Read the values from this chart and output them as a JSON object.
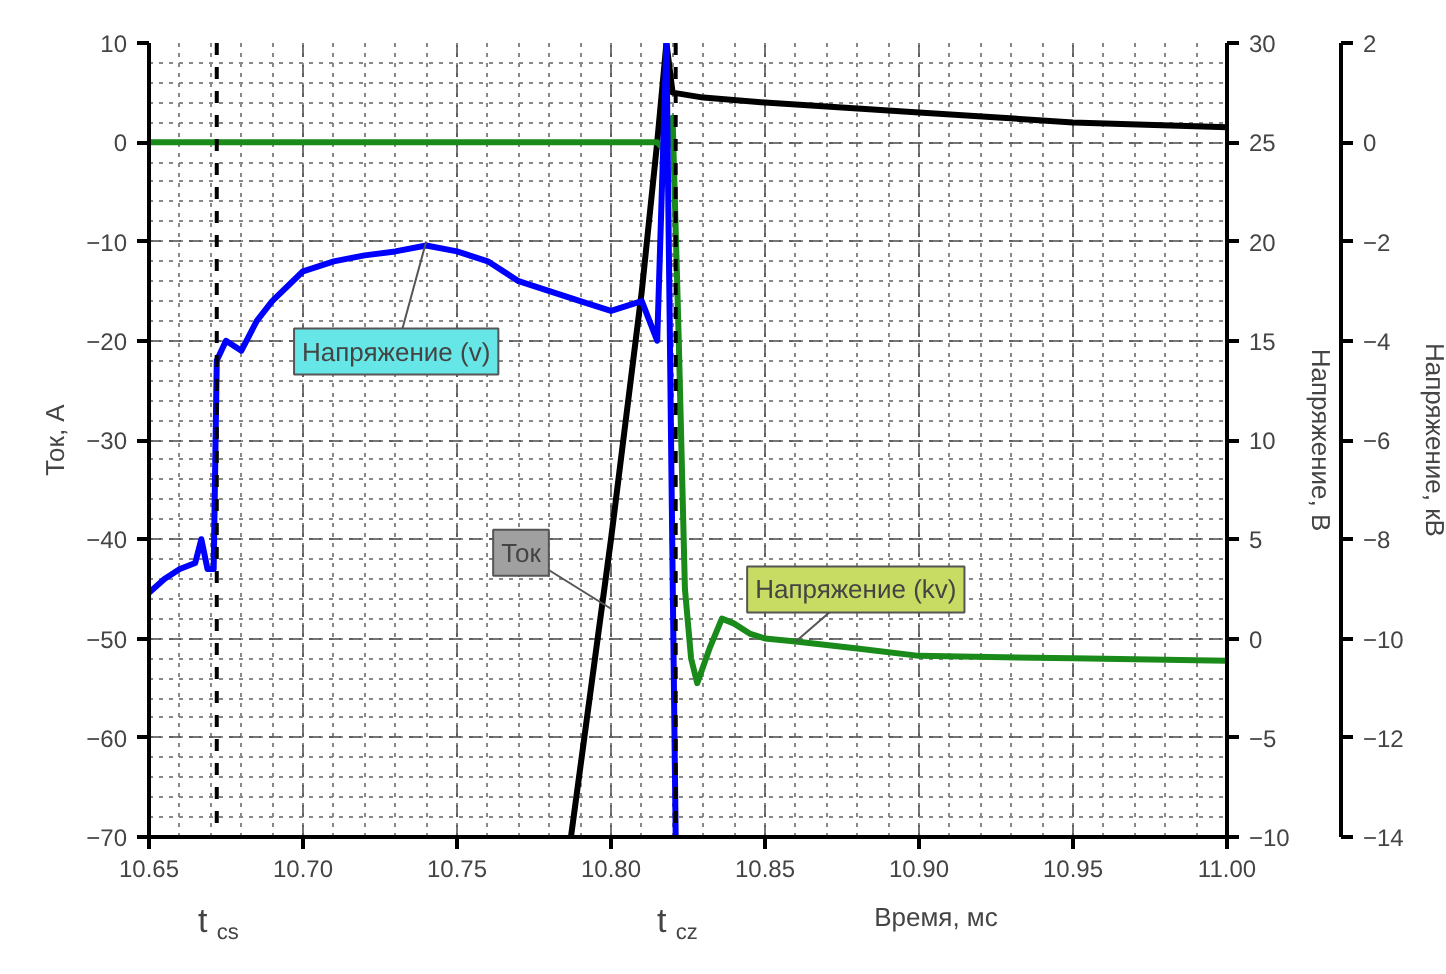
{
  "chart_data": {
    "type": "line",
    "xlabel": "Время, мс",
    "ylabel": "Ток, А",
    "y2label": "Напряжение, В",
    "y3label": "Напряжение, кВ",
    "xlim": [
      10.65,
      11.0
    ],
    "xticks": [
      {
        "value": 10.65,
        "label": "10.65"
      },
      {
        "value": 10.7,
        "label": "10.70"
      },
      {
        "value": 10.75,
        "label": "10.75"
      },
      {
        "value": 10.8,
        "label": "10.80"
      },
      {
        "value": 10.85,
        "label": "10.85"
      },
      {
        "value": 10.9,
        "label": "10.90"
      },
      {
        "value": 10.95,
        "label": "10.95"
      },
      {
        "value": 11.0,
        "label": "11.00"
      }
    ],
    "ylim": [
      -70,
      10
    ],
    "yticks": [
      -70,
      -60,
      -50,
      -40,
      -30,
      -20,
      -10,
      0,
      10
    ],
    "y2lim": [
      -10,
      30
    ],
    "y2ticks": [
      -10,
      -5,
      0,
      5,
      10,
      15,
      20,
      25,
      30
    ],
    "y3lim": [
      -14,
      2
    ],
    "y3ticks": [
      -14,
      -12,
      -10,
      -8,
      -6,
      -4,
      -2,
      0,
      2
    ],
    "grid": true,
    "line_style": "solid",
    "series": [
      {
        "color": "#000000",
        "axis": "y",
        "x": [
          10.787,
          10.8,
          10.81,
          10.815,
          10.818,
          10.82,
          10.83,
          10.85,
          10.9,
          10.95,
          11.0
        ],
        "values": [
          -70,
          -40,
          -15,
          0,
          10,
          5,
          4.5,
          4,
          3,
          2,
          1.5
        ]
      },
      {
        "color": "#1a8a1a",
        "axis": "y3",
        "x": [
          10.65,
          10.7,
          10.75,
          10.8,
          10.815,
          10.818,
          10.82,
          10.822,
          10.824,
          10.826,
          10.828,
          10.832,
          10.836,
          10.84,
          10.845,
          10.85,
          10.86,
          10.88,
          10.9,
          10.95,
          11.0
        ],
        "values": [
          0,
          0,
          0,
          0,
          0,
          -0.2,
          0.5,
          -4,
          -9,
          -10.4,
          -10.9,
          -10.2,
          -9.6,
          -9.7,
          -9.9,
          -10,
          -10.06,
          -10.2,
          -10.35,
          -10.4,
          -10.45
        ]
      },
      {
        "color": "#0000ff",
        "axis": "y2",
        "x": [
          10.65,
          10.655,
          10.66,
          10.665,
          10.667,
          10.669,
          10.671,
          10.672,
          10.675,
          10.68,
          10.685,
          10.69,
          10.7,
          10.71,
          10.72,
          10.73,
          10.74,
          10.75,
          10.76,
          10.77,
          10.78,
          10.79,
          10.8,
          10.81,
          10.815,
          10.818,
          10.821
        ],
        "values": [
          2.3,
          3,
          3.5,
          3.8,
          5,
          3.5,
          3.5,
          14,
          15,
          14.5,
          16,
          17,
          18.5,
          19,
          19.3,
          19.5,
          19.8,
          19.5,
          19,
          18,
          17.5,
          17,
          16.5,
          17,
          15,
          30,
          -10
        ]
      }
    ],
    "annotations": [
      {
        "text": "Напряжение (v)",
        "x": 10.74,
        "y": -10
      },
      {
        "text": "Ток",
        "x": 10.8,
        "y": -47
      },
      {
        "text": "Напряжение (kv)",
        "x": 10.86,
        "y": -50.3
      }
    ],
    "ref_lines": [
      {
        "axis": "x",
        "value": 10.672,
        "label": "t$_{cs}$",
        "color": "#000000",
        "line_style": "dashed"
      },
      {
        "axis": "x",
        "value": 10.821,
        "label": "t$_{cz}$",
        "color": "#000000",
        "line_style": "dashed"
      }
    ]
  }
}
